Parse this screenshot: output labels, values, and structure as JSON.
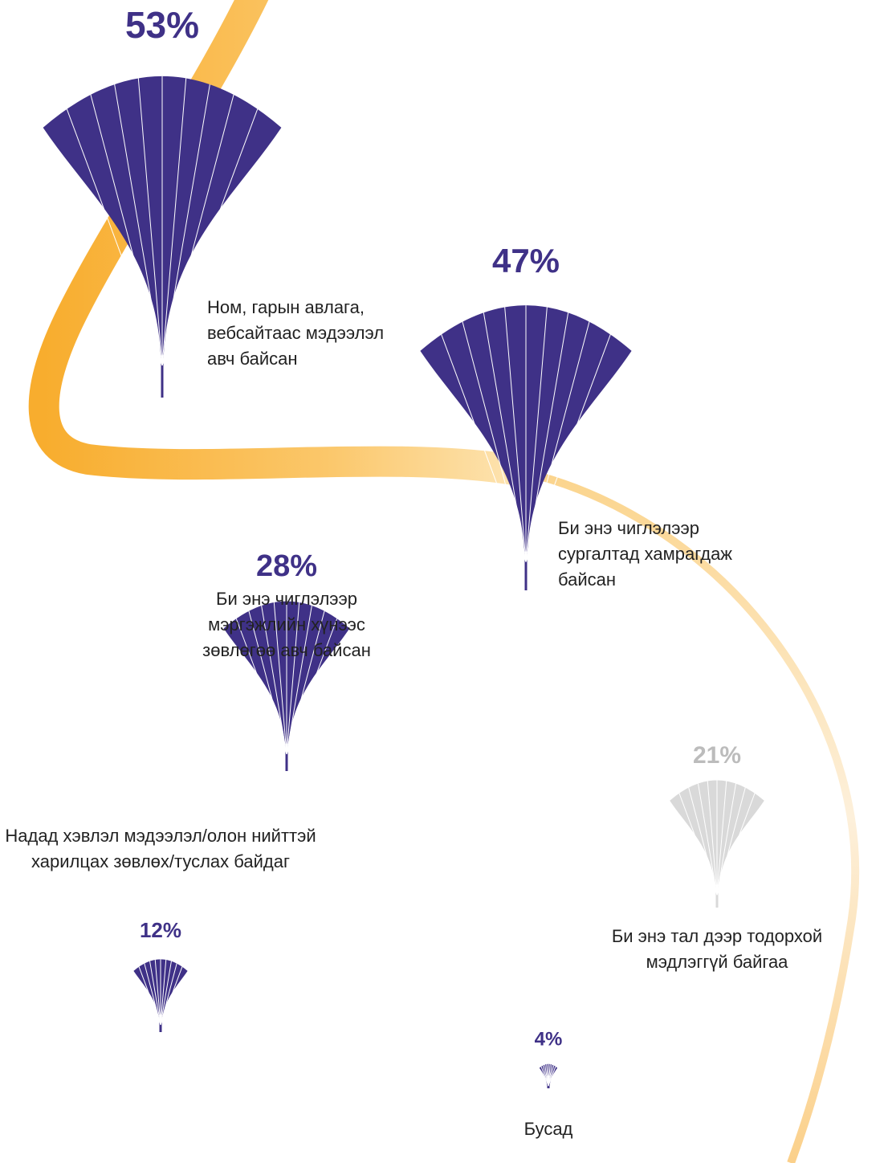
{
  "chart_data": {
    "type": "fan",
    "categories": [
      "Ном, гарын авлага, вебсайтаас мэдээлэл авч байсан",
      "Би энэ чиглэлээр сургалтад хамрагдаж байсан",
      "Би энэ чиглэлээр мэргэжлийн хүнээс зөвлөгөө авч байсан",
      "Би энэ тал дээр тодорхой мэдлэггүй байгаа",
      "Надад хэвлэл мэдээлэл/олон нийттэй харилцах зөвлөх/туслах байдаг",
      "Бусад"
    ],
    "values": [
      53,
      47,
      28,
      21,
      12,
      4
    ],
    "value_labels": [
      "53%",
      "47%",
      "28%",
      "21%",
      "12%",
      "4%"
    ],
    "colors": [
      "#3f3187",
      "#3f3187",
      "#3f3187",
      "#d9d9d9",
      "#3f3187",
      "#3f3187"
    ]
  }
}
